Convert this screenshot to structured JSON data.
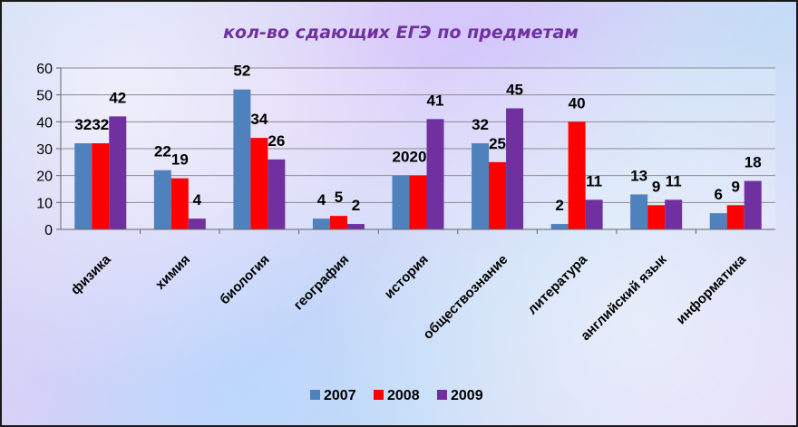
{
  "chart_data": {
    "type": "bar",
    "title": "кол-во сдающих ЕГЭ по предметам",
    "categories": [
      "физика",
      "химия",
      "биология",
      "география",
      "история",
      "обществознание",
      "литература",
      "английский язык",
      "информатика"
    ],
    "series": [
      {
        "name": "2007",
        "color": "#4f81bd",
        "values": [
          32,
          22,
          52,
          4,
          20,
          32,
          2,
          13,
          6
        ]
      },
      {
        "name": "2008",
        "color": "#ff0000",
        "values": [
          32,
          19,
          34,
          5,
          20,
          25,
          40,
          9,
          9
        ]
      },
      {
        "name": "2009",
        "color": "#7030a0",
        "values": [
          42,
          4,
          26,
          2,
          41,
          45,
          11,
          11,
          18
        ]
      }
    ],
    "yticks": [
      "0",
      "10",
      "20",
      "30",
      "40",
      "50",
      "60"
    ],
    "ylim": [
      0,
      60
    ],
    "grid": true,
    "legend": "bottom"
  }
}
